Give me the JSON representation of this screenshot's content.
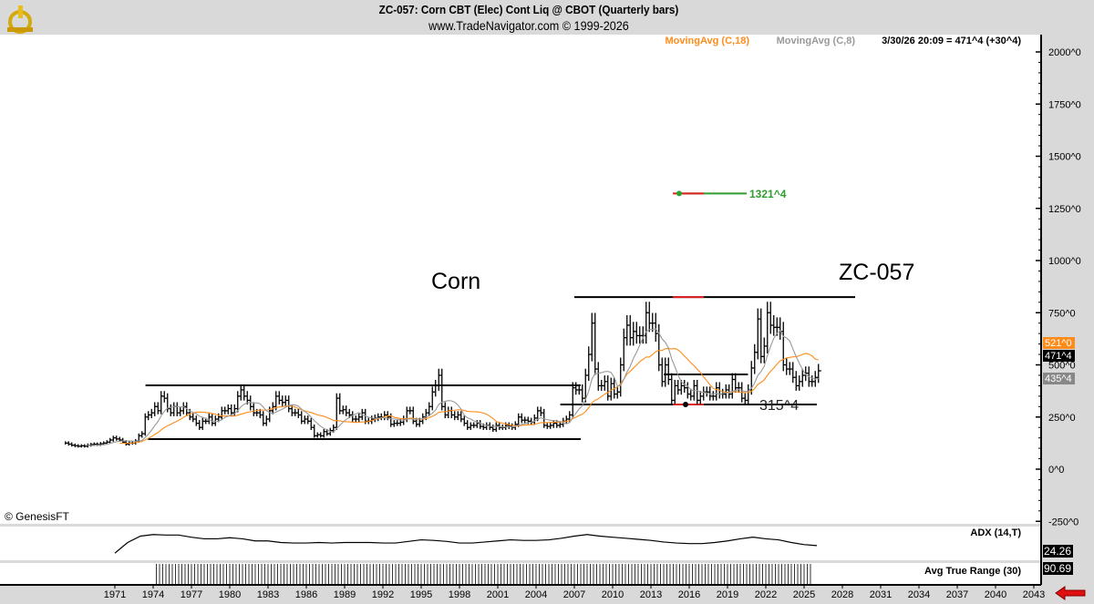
{
  "header": {
    "title": "ZC-057:  Corn CBT (Elec) Cont Liq @ CBOT  (Quarterly bars)",
    "subtitle": "www.TradeNavigator.com © 1999-2026"
  },
  "legend": {
    "ma18": "MovingAvg (C,18)",
    "ma8": "MovingAvg (C,8)",
    "last": "3/30/26 20:09 = 471^4 (+30^4)"
  },
  "copyright": "© GenesisFT",
  "annotations": {
    "corn": "Corn",
    "symbol": "ZC-057",
    "target": "1321^4",
    "low_label": "315^4"
  },
  "colors": {
    "ma18": "#ff8c1a",
    "ma8": "#999999",
    "bars": "#000000",
    "target": "#2e9e2e",
    "mark": "#e02020"
  },
  "price_tags": {
    "ma18": "521^0",
    "last": "471^4",
    "ma8": "435^4"
  },
  "panes": {
    "adx_label": "ADX (14,T)",
    "adx_value": "24.26",
    "atr_label": "Avg True Range (30)",
    "atr_value": "90.69"
  },
  "chart_data": {
    "type": "bar",
    "bar_period": "quarterly",
    "start": "1967 Q1",
    "close": [
      125,
      120,
      115,
      112,
      110,
      112,
      110,
      115,
      118,
      120,
      118,
      122,
      125,
      130,
      140,
      150,
      145,
      140,
      130,
      120,
      125,
      125,
      135,
      160,
      170,
      250,
      260,
      270,
      300,
      280,
      350,
      340,
      290,
      270,
      300,
      270,
      280,
      300,
      270,
      250,
      240,
      220,
      200,
      230,
      230,
      250,
      220,
      240,
      250,
      280,
      280,
      290,
      270,
      290,
      350,
      380,
      350,
      330,
      300,
      270,
      270,
      260,
      220,
      240,
      280,
      300,
      350,
      330,
      320,
      330,
      290,
      270,
      270,
      260,
      230,
      240,
      230,
      200,
      160,
      165,
      160,
      180,
      170,
      185,
      200,
      340,
      280,
      285,
      270,
      260,
      240,
      240,
      250,
      270,
      230,
      230,
      240,
      245,
      250,
      250,
      260,
      250,
      215,
      220,
      220,
      225,
      240,
      280,
      280,
      230,
      215,
      230,
      250,
      270,
      300,
      370,
      400,
      450,
      300,
      260,
      280,
      260,
      250,
      260,
      240,
      220,
      200,
      210,
      210,
      220,
      205,
      200,
      210,
      200,
      190,
      210,
      200,
      200,
      210,
      205,
      200,
      215,
      250,
      235,
      235,
      230,
      225,
      245,
      280,
      270,
      210,
      205,
      210,
      220,
      210,
      215,
      230,
      240,
      260,
      390,
      380,
      380,
      340,
      450,
      550,
      700,
      480,
      400,
      400,
      420,
      350,
      410,
      360,
      370,
      500,
      630,
      690,
      630,
      660,
      640,
      640,
      640,
      750,
      700,
      700,
      650,
      500,
      420,
      500,
      430,
      330,
      400,
      380,
      400,
      390,
      360,
      350,
      400,
      330,
      350,
      370,
      370,
      350,
      350,
      390,
      360,
      360,
      380,
      360,
      430,
      390,
      390,
      340,
      330,
      380,
      485,
      560,
      720,
      540,
      590,
      750,
      690,
      680,
      680,
      660,
      500,
      480,
      480,
      440,
      400,
      420,
      450,
      460,
      420,
      420,
      440,
      471.5
    ],
    "moving_averages": [
      {
        "name": "MovingAvg (C,18)",
        "period": 18
      },
      {
        "name": "MovingAvg (C,8)",
        "period": 8
      }
    ],
    "y_ticks": [
      "2000^0",
      "1750^0",
      "1500^0",
      "1250^0",
      "1000^0",
      "750^0",
      "500^0",
      "250^0",
      "0^0",
      "-250^0"
    ],
    "ylim": [
      -250,
      2000
    ],
    "x_ticks": [
      "1971",
      "1974",
      "1977",
      "1980",
      "1983",
      "1986",
      "1989",
      "1992",
      "1995",
      "1998",
      "2001",
      "2004",
      "2007",
      "2010",
      "2013",
      "2016",
      "2019",
      "2022",
      "2025",
      "2028",
      "2031",
      "2034",
      "2037",
      "2040",
      "2043"
    ],
    "xlim": [
      1967,
      2043
    ],
    "trend_lines": [
      {
        "from": 1973.4,
        "to": 2007.5,
        "value": 402
      },
      {
        "from": 1973.6,
        "to": 2007.5,
        "value": 144
      },
      {
        "from": 2007.0,
        "to": 2029.0,
        "value": 825
      },
      {
        "from": 2005.9,
        "to": 2026.0,
        "value": 310
      },
      {
        "from": 2014.0,
        "to": 2020.6,
        "value": 454
      }
    ],
    "target": {
      "value": 1321.5,
      "from": 2015.5,
      "to": 2020.5
    },
    "adx": {
      "start": 1971,
      "values": [
        10,
        30,
        42,
        45,
        44,
        44,
        40,
        37,
        37,
        39,
        37,
        33,
        33,
        30,
        29,
        29,
        30,
        29,
        30,
        30,
        30,
        29,
        29,
        32,
        35,
        34,
        32,
        29,
        29,
        31,
        33,
        35,
        34,
        34,
        35,
        38,
        42,
        45,
        42,
        40,
        38,
        36,
        34,
        31,
        29,
        28,
        28,
        30,
        33,
        37,
        40,
        37,
        35,
        30,
        26,
        24.26
      ],
      "ylim": [
        0,
        60
      ]
    },
    "atr": {
      "start": 1974,
      "end": 2025.3
    }
  }
}
